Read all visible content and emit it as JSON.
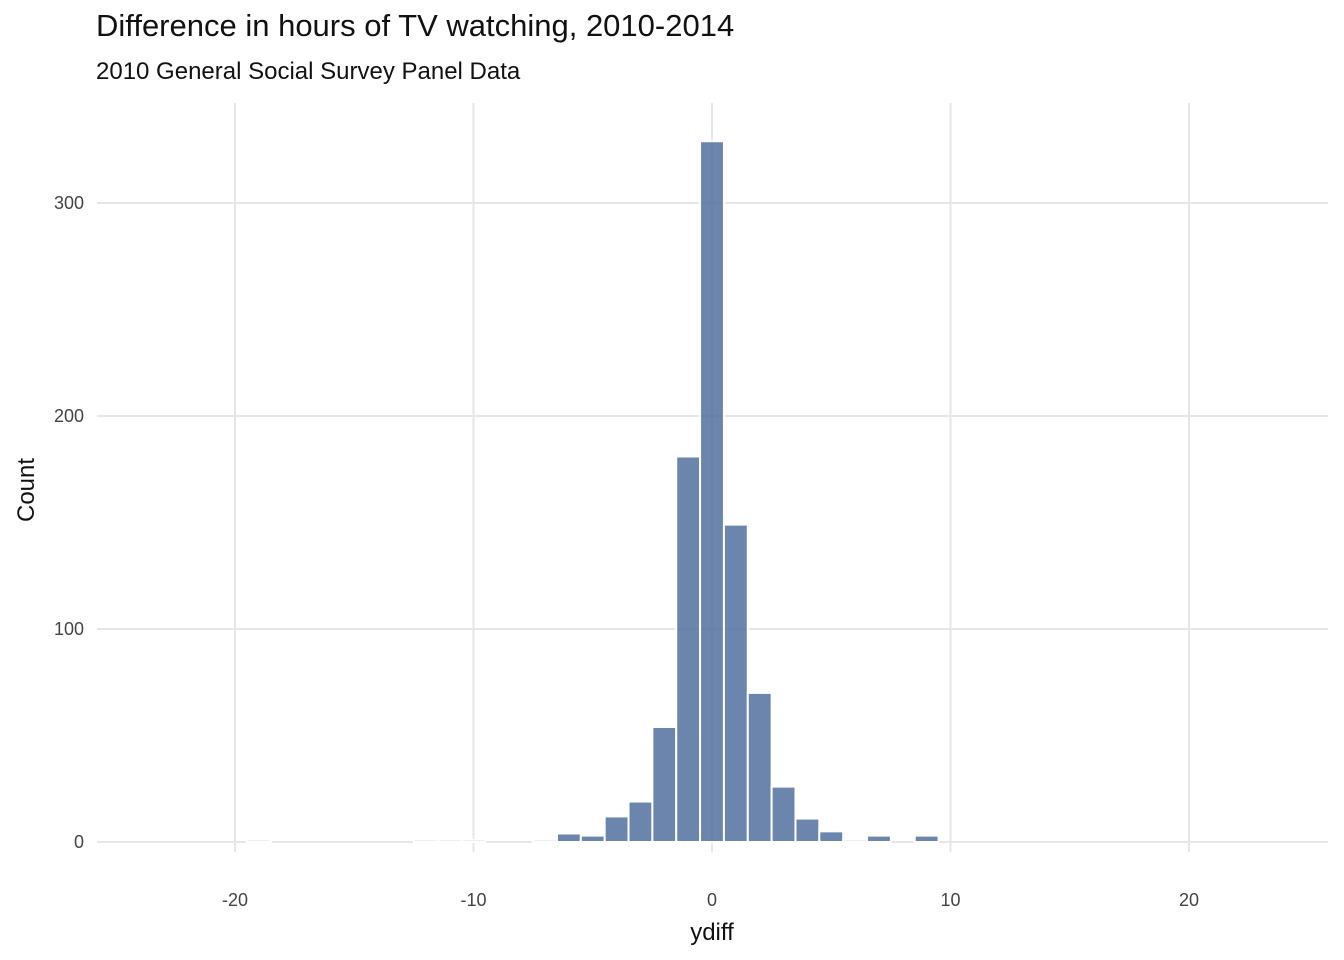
{
  "chart_data": {
    "type": "bar",
    "title": "Difference in hours of TV watching, 2010-2014",
    "subtitle": "2010 General Social Survey Panel Data",
    "xlabel": "ydiff",
    "ylabel": "Count",
    "xlim": [
      -25,
      25
    ],
    "ylim": [
      0,
      330
    ],
    "grid": true,
    "x_ticks": [
      -20,
      -10,
      0,
      10,
      20
    ],
    "x_tick_labels": [
      "-20",
      "-10",
      "0",
      "10",
      "20"
    ],
    "y_ticks": [
      0,
      100,
      200,
      300
    ],
    "y_tick_labels": [
      "0",
      "100",
      "200",
      "300"
    ],
    "bin_width": 1,
    "bar_color": "#4b6a9b",
    "bins": [
      {
        "x": -23,
        "count": 0
      },
      {
        "x": -22,
        "count": 0
      },
      {
        "x": -21,
        "count": 0
      },
      {
        "x": -20,
        "count": 0
      },
      {
        "x": -19,
        "count": 1
      },
      {
        "x": -18,
        "count": 0
      },
      {
        "x": -17,
        "count": 0
      },
      {
        "x": -16,
        "count": 0
      },
      {
        "x": -15,
        "count": 0
      },
      {
        "x": -14,
        "count": 0
      },
      {
        "x": -13,
        "count": 0
      },
      {
        "x": -12,
        "count": 1
      },
      {
        "x": -11,
        "count": 1
      },
      {
        "x": -10,
        "count": 1
      },
      {
        "x": -9,
        "count": 0
      },
      {
        "x": -8,
        "count": 0
      },
      {
        "x": -7,
        "count": 1
      },
      {
        "x": -6,
        "count": 4
      },
      {
        "x": -5,
        "count": 3
      },
      {
        "x": -4,
        "count": 12
      },
      {
        "x": -3,
        "count": 19
      },
      {
        "x": -2,
        "count": 54
      },
      {
        "x": -1,
        "count": 181
      },
      {
        "x": 0,
        "count": 329
      },
      {
        "x": 1,
        "count": 149
      },
      {
        "x": 2,
        "count": 70
      },
      {
        "x": 3,
        "count": 26
      },
      {
        "x": 4,
        "count": 11
      },
      {
        "x": 5,
        "count": 5
      },
      {
        "x": 6,
        "count": 1
      },
      {
        "x": 7,
        "count": 3
      },
      {
        "x": 8,
        "count": 0
      },
      {
        "x": 9,
        "count": 3
      },
      {
        "x": 10,
        "count": 0
      },
      {
        "x": 11,
        "count": 0
      },
      {
        "x": 12,
        "count": 0
      },
      {
        "x": 13,
        "count": 0
      },
      {
        "x": 14,
        "count": 0
      },
      {
        "x": 15,
        "count": 0
      },
      {
        "x": 16,
        "count": 0
      },
      {
        "x": 17,
        "count": 0
      },
      {
        "x": 18,
        "count": 0
      },
      {
        "x": 19,
        "count": 0
      },
      {
        "x": 20,
        "count": 0
      },
      {
        "x": 21,
        "count": 0
      },
      {
        "x": 22,
        "count": 0
      },
      {
        "x": 23,
        "count": 0
      }
    ]
  }
}
